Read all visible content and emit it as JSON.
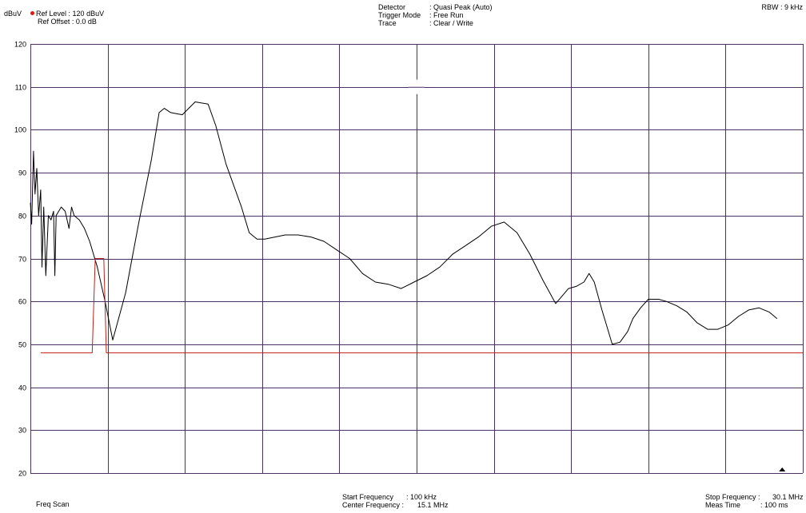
{
  "header": {
    "unit_label": "dBuV",
    "ref_level_label": "Ref Level",
    "ref_level_value": ": 120   dBuV",
    "ref_offset_label": "Ref Offset :",
    "ref_offset_value": "0.0 dB",
    "detector_label": "Detector",
    "detector_value": ": Quasi Peak (Auto)",
    "trigger_label": "Trigger Mode",
    "trigger_value": ": Free Run",
    "trace_label": "Trace",
    "trace_value": ": Clear / Write",
    "rbw": "RBW : 9 kHz"
  },
  "footer": {
    "mode": "Freq Scan",
    "start_label": "Start Frequency",
    "start_value": ":  100   kHz",
    "center_label": "Center Frequency :",
    "center_value": "15.1 MHz",
    "stop_label": "Stop Frequency :",
    "stop_value": "30.1 MHz",
    "meas_label": "Meas Time",
    "meas_value": ":  100   ms"
  },
  "colors": {
    "grid": "#4b3163",
    "trace": "#000000",
    "limit": "#c0201a",
    "ref_dot": "#e01818"
  },
  "chart_data": {
    "type": "line",
    "x_unit": "MHz",
    "y_unit": "dBuV",
    "xlim": [
      0.1,
      30.1
    ],
    "ylim": [
      20,
      120
    ],
    "yticks": [
      20,
      30,
      40,
      50,
      60,
      70,
      80,
      90,
      100,
      110,
      120
    ],
    "grid": true,
    "marker_x": 29.3,
    "series": [
      {
        "role": "trace",
        "x": [
          0.1,
          0.15,
          0.22,
          0.28,
          0.35,
          0.42,
          0.5,
          0.55,
          0.62,
          0.7,
          0.8,
          0.9,
          1.0,
          1.05,
          1.1,
          1.2,
          1.3,
          1.45,
          1.6,
          1.7,
          1.8,
          2.0,
          2.2,
          2.4,
          2.7,
          3.0,
          3.3,
          3.8,
          4.3,
          4.8,
          5.1,
          5.3,
          5.55,
          6.0,
          6.5,
          7.0,
          7.3,
          7.7,
          8.3,
          8.6,
          8.9,
          9.2,
          9.6,
          10.0,
          10.5,
          11.0,
          11.5,
          12.0,
          12.5,
          13.0,
          13.5,
          14.0,
          14.5,
          15.0,
          15.5,
          16.0,
          16.5,
          17.0,
          17.5,
          18.0,
          18.5,
          19.0,
          19.5,
          20.0,
          20.5,
          21.0,
          21.3,
          21.6,
          21.8,
          22.0,
          22.3,
          22.7,
          23.0,
          23.3,
          23.5,
          23.8,
          24.1,
          24.5,
          24.8,
          25.2,
          25.6,
          26.0,
          26.4,
          26.8,
          27.2,
          27.6,
          28.0,
          28.4,
          28.8,
          29.1
        ],
        "y": [
          83,
          78,
          95,
          85,
          91,
          80,
          86,
          68,
          82,
          66,
          80,
          79,
          81,
          66,
          80,
          81,
          82,
          81,
          77,
          82,
          80,
          79,
          77,
          74,
          68,
          60,
          51,
          62,
          78,
          93,
          104,
          105,
          104,
          103.5,
          106.5,
          106,
          101,
          92,
          82,
          76,
          74.5,
          74.5,
          75,
          75.5,
          75.5,
          75,
          74,
          72,
          70,
          66.5,
          64.5,
          64,
          63,
          64.5,
          66,
          68,
          71,
          73,
          75,
          77.5,
          78.5,
          76,
          71,
          65,
          59.5,
          63,
          63.5,
          64.5,
          66.5,
          64.5,
          58,
          50,
          50.5,
          53,
          56,
          58.5,
          60.5,
          60.5,
          60,
          59,
          57.5,
          55,
          53.5,
          53.5,
          54.5,
          56.5,
          58,
          58.5,
          57.5,
          56
        ]
      },
      {
        "role": "limit",
        "x": [
          0.5,
          2.5,
          2.62,
          2.95,
          3.05,
          30.1
        ],
        "y": [
          48,
          48,
          70,
          70,
          48,
          48
        ]
      }
    ]
  }
}
